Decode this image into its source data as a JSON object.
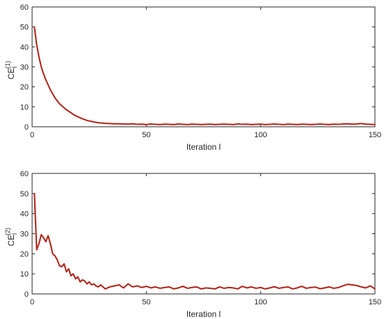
{
  "chart_data": [
    {
      "type": "line",
      "title": "",
      "xlabel": "Iteration l",
      "ylabel": "CE",
      "ylabel_sub": "l",
      "ylabel_sup": "(1)",
      "xlim": [
        0,
        150
      ],
      "ylim": [
        0,
        60
      ],
      "xticks": [
        0,
        50,
        100,
        150
      ],
      "yticks": [
        0,
        10,
        20,
        30,
        40,
        50,
        60
      ],
      "grid": false,
      "colors": {
        "line": "#b02418",
        "halo": "#f2b6d9"
      },
      "series": [
        {
          "x": [
            1,
            2,
            3,
            4,
            5,
            6,
            7,
            8,
            9,
            10,
            11,
            12,
            13,
            14,
            15,
            16,
            17,
            18,
            19,
            20,
            21,
            22,
            23,
            24,
            25,
            26,
            27,
            28,
            29,
            30,
            32,
            34,
            36,
            38,
            40,
            42,
            44,
            46,
            48,
            50,
            52,
            54,
            56,
            58,
            60,
            62,
            64,
            66,
            68,
            70,
            72,
            74,
            76,
            78,
            80,
            82,
            84,
            86,
            88,
            90,
            92,
            94,
            96,
            98,
            100,
            102,
            104,
            106,
            108,
            110,
            112,
            114,
            116,
            118,
            120,
            122,
            124,
            126,
            128,
            130,
            132,
            134,
            136,
            138,
            140,
            142,
            144,
            146,
            148,
            150
          ],
          "values": [
            50,
            41,
            35,
            30,
            26.5,
            23.5,
            21,
            18.5,
            16.5,
            14.5,
            13,
            11.5,
            10.5,
            9.5,
            8.5,
            7.8,
            7,
            6.2,
            5.6,
            5,
            4.5,
            4,
            3.6,
            3.2,
            2.9,
            2.7,
            2.4,
            2.2,
            2,
            1.9,
            1.7,
            1.6,
            1.5,
            1.5,
            1.4,
            1.3,
            1.5,
            1.2,
            1.3,
            1.1,
            1.4,
            1.2,
            1.1,
            1.3,
            1.2,
            1.1,
            1.4,
            1.2,
            1.1,
            1.3,
            1.2,
            1.1,
            1.2,
            1.3,
            1.1,
            1.2,
            1.3,
            1.2,
            1.1,
            1.4,
            1.2,
            1.3,
            1.1,
            1.2,
            1.3,
            1.1,
            1.2,
            1.4,
            1.2,
            1.1,
            1.3,
            1.2,
            1.1,
            1.3,
            1.2,
            1.1,
            1.2,
            1.4,
            1.2,
            1.1,
            1.3,
            1.2,
            1.4,
            1.5,
            1.3,
            1.4,
            1.6,
            1.3,
            1.2,
            1.1
          ]
        }
      ]
    },
    {
      "type": "line",
      "title": "",
      "xlabel": "Iteration l",
      "ylabel": "CE",
      "ylabel_sub": "l",
      "ylabel_sup": "(2)",
      "xlim": [
        0,
        150
      ],
      "ylim": [
        0,
        60
      ],
      "xticks": [
        0,
        50,
        100,
        150
      ],
      "yticks": [
        0,
        10,
        20,
        30,
        40,
        50,
        60
      ],
      "grid": false,
      "colors": {
        "line": "#b02418",
        "halo": "#f2b6d9"
      },
      "series": [
        {
          "x": [
            1,
            2,
            3,
            4,
            5,
            6,
            7,
            8,
            9,
            10,
            11,
            12,
            13,
            14,
            15,
            16,
            17,
            18,
            19,
            20,
            21,
            22,
            23,
            24,
            25,
            26,
            27,
            28,
            29,
            30,
            32,
            34,
            36,
            38,
            40,
            42,
            44,
            46,
            48,
            50,
            52,
            54,
            56,
            58,
            60,
            62,
            64,
            66,
            68,
            70,
            72,
            74,
            76,
            78,
            80,
            82,
            84,
            86,
            88,
            90,
            92,
            94,
            96,
            98,
            100,
            102,
            104,
            106,
            108,
            110,
            112,
            114,
            116,
            118,
            120,
            122,
            124,
            126,
            128,
            130,
            132,
            134,
            136,
            138,
            140,
            142,
            144,
            146,
            148,
            150
          ],
          "values": [
            50,
            22,
            25,
            29.5,
            28,
            26,
            29,
            25,
            20,
            19,
            17,
            14,
            13.5,
            15,
            11,
            12.5,
            9,
            10,
            7.5,
            8.5,
            6,
            7,
            6.5,
            5,
            6,
            4.5,
            5,
            4,
            3.5,
            4.5,
            2.5,
            3.5,
            4,
            4.5,
            3,
            5,
            3.5,
            4,
            3.2,
            3.8,
            3,
            3.5,
            2.8,
            3.2,
            3.5,
            2.5,
            3,
            3.8,
            2.8,
            3.2,
            3.5,
            2.5,
            3,
            2.8,
            2.5,
            3.5,
            2.8,
            3.2,
            3,
            2.5,
            3.8,
            3,
            3.5,
            2.8,
            3.2,
            2.5,
            3,
            3.6,
            2.8,
            3.2,
            3.5,
            2.5,
            3,
            3.8,
            2.8,
            3.2,
            3.4,
            2.6,
            3,
            3.5,
            2.8,
            3.2,
            4,
            4.8,
            4.5,
            4.2,
            3.5,
            3,
            4,
            2.5
          ]
        }
      ]
    }
  ]
}
